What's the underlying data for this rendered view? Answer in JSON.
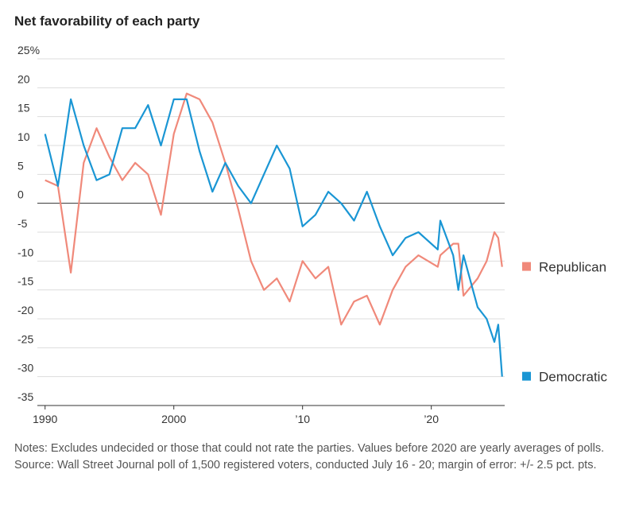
{
  "chart_data": {
    "type": "line",
    "title": "Net favorability of each party",
    "x": [
      1990,
      1991,
      1992,
      1993,
      1994,
      1995,
      1996,
      1997,
      1998,
      1999,
      2000,
      2001,
      2002,
      2003,
      2004,
      2005,
      2006,
      2007,
      2008,
      2009,
      2010,
      2011,
      2012,
      2013,
      2014,
      2015,
      2016,
      2017,
      2018,
      2019,
      2020.5,
      2020.7,
      2021.7,
      2022.1,
      2022.5,
      2023.6,
      2024.3,
      2024.9,
      2025.2,
      2025.5
    ],
    "series": [
      {
        "name": "Republican",
        "color": "#f0897a",
        "values": [
          4,
          3,
          -12,
          7,
          13,
          8,
          4,
          7,
          5,
          -2,
          12,
          19,
          18,
          14,
          7,
          -1,
          -10,
          -15,
          -13,
          -17,
          -10,
          -13,
          -11,
          -21,
          -17,
          -16,
          -21,
          -15,
          -11,
          -9,
          -11,
          -9,
          -7,
          -7,
          -16,
          -13,
          -10,
          -5,
          -6,
          -11
        ]
      },
      {
        "name": "Democratic",
        "color": "#1a96d4",
        "values": [
          12,
          3,
          18,
          10,
          4,
          5,
          13,
          13,
          17,
          10,
          18,
          18,
          9,
          2,
          7,
          3,
          0,
          5,
          10,
          6,
          -4,
          -2,
          2,
          0,
          -3,
          2,
          -4,
          -9,
          -6,
          -5,
          -8,
          -3,
          -9,
          -15,
          -9,
          -18,
          -20,
          -24,
          -21,
          -30
        ]
      }
    ],
    "xlim": [
      1989.4,
      2025.7
    ],
    "xticks": [
      1990,
      2000,
      {
        "value": 2010,
        "label": "’10"
      },
      {
        "value": 2020,
        "label": "’20"
      }
    ],
    "ylim": [
      -35,
      25
    ],
    "yticks": [
      -35,
      -30,
      -25,
      -20,
      -15,
      -10,
      -5,
      0,
      5,
      10,
      15,
      {
        "value": 25,
        "label": "25%"
      },
      20
    ],
    "grid": true,
    "notes": "Notes: Excludes undecided or those that could not rate the parties. Values before 2020 are yearly averages of polls.",
    "source": "Source: Wall Street Journal poll of 1,500 registered voters, conducted July 16 - 20; margin of error: +/- 2.5 pct. pts."
  }
}
